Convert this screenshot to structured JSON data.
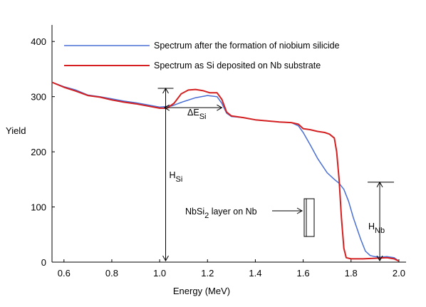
{
  "chart_data": {
    "type": "line",
    "title": "",
    "xlabel": "Energy (MeV)",
    "ylabel": "Yield",
    "xlim": [
      0.55,
      2.03
    ],
    "ylim": [
      0,
      430
    ],
    "x_ticks": [
      {
        "value": 0.6,
        "label": "0.6"
      },
      {
        "value": 0.8,
        "label": "0.8"
      },
      {
        "value": 1.0,
        "label": "1.0"
      },
      {
        "value": 1.2,
        "label": "1.2"
      },
      {
        "value": 1.4,
        "label": "1.4"
      },
      {
        "value": 1.6,
        "label": "1.6"
      },
      {
        "value": 1.8,
        "label": "1.8"
      },
      {
        "value": 2.0,
        "label": "2.0"
      }
    ],
    "y_ticks": [
      {
        "value": 0,
        "label": "0"
      },
      {
        "value": 100,
        "label": "100"
      },
      {
        "value": 200,
        "label": "200"
      },
      {
        "value": 300,
        "label": "300"
      },
      {
        "value": 400,
        "label": "400"
      }
    ],
    "grid": false,
    "legend_position": "top",
    "series": [
      {
        "name": "Spectrum after the formation of niobium silicide",
        "color": "#4a6fd4",
        "points": [
          [
            0.55,
            326
          ],
          [
            0.6,
            318
          ],
          [
            0.65,
            312
          ],
          [
            0.7,
            303
          ],
          [
            0.75,
            300
          ],
          [
            0.8,
            296
          ],
          [
            0.85,
            292
          ],
          [
            0.9,
            289
          ],
          [
            0.95,
            285
          ],
          [
            1.0,
            281
          ],
          [
            1.05,
            283
          ],
          [
            1.1,
            291
          ],
          [
            1.15,
            298
          ],
          [
            1.2,
            302
          ],
          [
            1.24,
            300
          ],
          [
            1.26,
            288
          ],
          [
            1.28,
            270
          ],
          [
            1.3,
            264
          ],
          [
            1.35,
            262
          ],
          [
            1.4,
            258
          ],
          [
            1.45,
            256
          ],
          [
            1.5,
            254
          ],
          [
            1.55,
            253
          ],
          [
            1.58,
            247
          ],
          [
            1.6,
            235
          ],
          [
            1.63,
            212
          ],
          [
            1.66,
            188
          ],
          [
            1.7,
            162
          ],
          [
            1.73,
            150
          ],
          [
            1.75,
            143
          ],
          [
            1.77,
            132
          ],
          [
            1.79,
            110
          ],
          [
            1.81,
            80
          ],
          [
            1.84,
            42
          ],
          [
            1.86,
            20
          ],
          [
            1.88,
            12
          ],
          [
            1.9,
            10
          ],
          [
            1.92,
            9
          ],
          [
            1.95,
            10
          ],
          [
            1.98,
            8
          ],
          [
            2.0,
            2
          ]
        ]
      },
      {
        "name": "Spectrum as Si deposited on Nb  substrate",
        "color": "#d42020",
        "points": [
          [
            0.55,
            326
          ],
          [
            0.6,
            317
          ],
          [
            0.65,
            310
          ],
          [
            0.7,
            302
          ],
          [
            0.75,
            299
          ],
          [
            0.8,
            294
          ],
          [
            0.85,
            290
          ],
          [
            0.9,
            287
          ],
          [
            0.95,
            283
          ],
          [
            1.0,
            279
          ],
          [
            1.03,
            279
          ],
          [
            1.06,
            288
          ],
          [
            1.09,
            305
          ],
          [
            1.12,
            312
          ],
          [
            1.15,
            313
          ],
          [
            1.18,
            311
          ],
          [
            1.21,
            307
          ],
          [
            1.24,
            307
          ],
          [
            1.26,
            295
          ],
          [
            1.28,
            272
          ],
          [
            1.3,
            265
          ],
          [
            1.35,
            262
          ],
          [
            1.4,
            258
          ],
          [
            1.45,
            256
          ],
          [
            1.5,
            254
          ],
          [
            1.55,
            253
          ],
          [
            1.58,
            250
          ],
          [
            1.6,
            242
          ],
          [
            1.63,
            240
          ],
          [
            1.66,
            237
          ],
          [
            1.69,
            235
          ],
          [
            1.71,
            232
          ],
          [
            1.73,
            225
          ],
          [
            1.74,
            200
          ],
          [
            1.75,
            150
          ],
          [
            1.76,
            80
          ],
          [
            1.77,
            25
          ],
          [
            1.78,
            8
          ],
          [
            1.8,
            6
          ],
          [
            1.85,
            6
          ],
          [
            1.9,
            7
          ],
          [
            1.95,
            8
          ],
          [
            1.98,
            6
          ],
          [
            2.0,
            2
          ]
        ]
      }
    ],
    "annotations": {
      "delta_e": {
        "symbol": "ΔE",
        "subscript": "Si"
      },
      "h_si": {
        "symbol": "H",
        "subscript": "Si"
      },
      "h_nb": {
        "symbol": "H",
        "subscript": "Nb"
      },
      "layer": {
        "text_a": "NbSi",
        "sub": "2",
        "text_b": " layer on Nb"
      }
    },
    "annotation_values": {
      "h_si_x": 1.025,
      "h_si_top": 315,
      "delta_e_x1": 1.02,
      "delta_e_x2": 1.26,
      "delta_e_y": 280,
      "h_nb_x": 1.92,
      "h_nb_top": 145
    }
  }
}
